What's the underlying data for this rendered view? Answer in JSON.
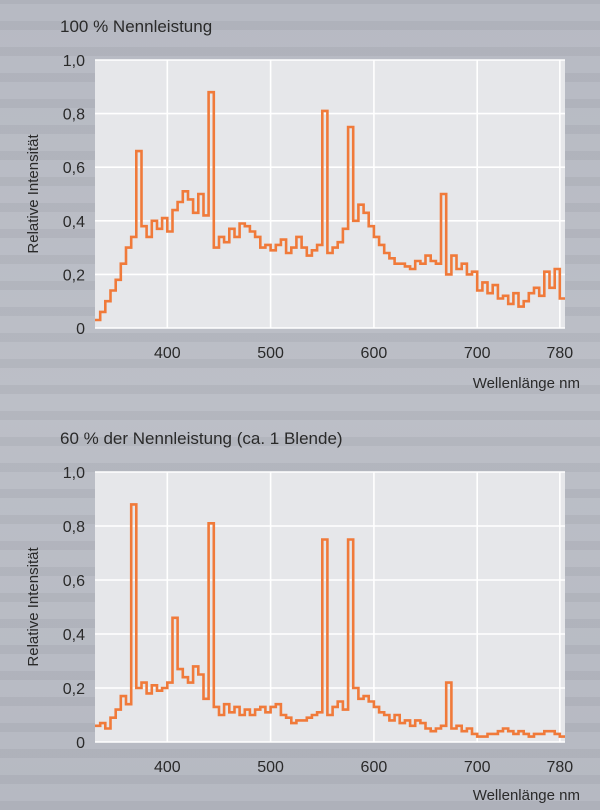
{
  "colors": {
    "line": "#f07a3a",
    "grid": "#ffffff",
    "plot_bg": "#e6e7ea",
    "text": "#2a2a2a"
  },
  "chart_data": [
    {
      "type": "line",
      "title": "100 % Nennleistung",
      "xlabel": "Wellenlänge nm",
      "ylabel": "Relative Intensität",
      "xlim": [
        330,
        785
      ],
      "ylim": [
        0,
        1.0
      ],
      "xticks": [
        400,
        500,
        600,
        700,
        780
      ],
      "yticks": [
        "0",
        "0,2",
        "0,4",
        "0,6",
        "0,8",
        "1,0"
      ],
      "grid": true,
      "series": [
        {
          "x": [
            330,
            335,
            340,
            345,
            350,
            355,
            360,
            365,
            370,
            375,
            380,
            385,
            390,
            395,
            400,
            405,
            410,
            415,
            420,
            425,
            430,
            435,
            440,
            445,
            450,
            455,
            460,
            465,
            470,
            475,
            480,
            485,
            490,
            495,
            500,
            505,
            510,
            515,
            520,
            525,
            530,
            535,
            540,
            545,
            550,
            555,
            560,
            565,
            570,
            575,
            580,
            585,
            590,
            595,
            600,
            605,
            610,
            615,
            620,
            625,
            630,
            635,
            640,
            645,
            650,
            655,
            660,
            665,
            670,
            675,
            680,
            685,
            690,
            695,
            700,
            705,
            710,
            715,
            720,
            725,
            730,
            735,
            740,
            745,
            750,
            755,
            760,
            765,
            770,
            775,
            780
          ],
          "values": [
            0.03,
            0.06,
            0.1,
            0.14,
            0.18,
            0.24,
            0.3,
            0.34,
            0.66,
            0.38,
            0.34,
            0.4,
            0.37,
            0.41,
            0.36,
            0.44,
            0.47,
            0.51,
            0.48,
            0.43,
            0.5,
            0.42,
            0.88,
            0.3,
            0.34,
            0.32,
            0.37,
            0.34,
            0.39,
            0.38,
            0.36,
            0.34,
            0.3,
            0.31,
            0.29,
            0.31,
            0.33,
            0.28,
            0.3,
            0.34,
            0.3,
            0.27,
            0.29,
            0.31,
            0.81,
            0.28,
            0.3,
            0.32,
            0.37,
            0.75,
            0.4,
            0.46,
            0.43,
            0.38,
            0.34,
            0.31,
            0.28,
            0.26,
            0.24,
            0.24,
            0.23,
            0.22,
            0.25,
            0.24,
            0.27,
            0.25,
            0.24,
            0.5,
            0.2,
            0.27,
            0.22,
            0.24,
            0.2,
            0.21,
            0.14,
            0.17,
            0.13,
            0.16,
            0.11,
            0.12,
            0.09,
            0.13,
            0.08,
            0.1,
            0.13,
            0.15,
            0.12,
            0.21,
            0.15,
            0.22,
            0.11
          ]
        }
      ]
    },
    {
      "type": "line",
      "title": "60 % der Nennleistung (ca. 1 Blende)",
      "xlabel": "Wellenlänge nm",
      "ylabel": "Relative Intensität",
      "xlim": [
        330,
        785
      ],
      "ylim": [
        0,
        1.0
      ],
      "xticks": [
        400,
        500,
        600,
        700,
        780
      ],
      "yticks": [
        "0",
        "0,2",
        "0,4",
        "0,6",
        "0,8",
        "1,0"
      ],
      "grid": true,
      "series": [
        {
          "x": [
            330,
            335,
            340,
            345,
            350,
            355,
            360,
            365,
            370,
            375,
            380,
            385,
            390,
            395,
            400,
            405,
            410,
            415,
            420,
            425,
            430,
            435,
            440,
            445,
            450,
            455,
            460,
            465,
            470,
            475,
            480,
            485,
            490,
            495,
            500,
            505,
            510,
            515,
            520,
            525,
            530,
            535,
            540,
            545,
            550,
            555,
            560,
            565,
            570,
            575,
            580,
            585,
            590,
            595,
            600,
            605,
            610,
            615,
            620,
            625,
            630,
            635,
            640,
            645,
            650,
            655,
            660,
            665,
            670,
            675,
            680,
            685,
            690,
            695,
            700,
            705,
            710,
            715,
            720,
            725,
            730,
            735,
            740,
            745,
            750,
            755,
            760,
            765,
            770,
            775,
            780
          ],
          "values": [
            0.06,
            0.07,
            0.05,
            0.09,
            0.12,
            0.17,
            0.14,
            0.88,
            0.2,
            0.22,
            0.18,
            0.21,
            0.19,
            0.2,
            0.22,
            0.46,
            0.27,
            0.24,
            0.22,
            0.28,
            0.25,
            0.16,
            0.81,
            0.13,
            0.1,
            0.14,
            0.11,
            0.13,
            0.1,
            0.12,
            0.1,
            0.12,
            0.13,
            0.11,
            0.13,
            0.14,
            0.1,
            0.09,
            0.07,
            0.08,
            0.08,
            0.09,
            0.1,
            0.11,
            0.75,
            0.1,
            0.13,
            0.15,
            0.12,
            0.75,
            0.2,
            0.16,
            0.17,
            0.15,
            0.13,
            0.11,
            0.1,
            0.08,
            0.1,
            0.07,
            0.08,
            0.06,
            0.08,
            0.07,
            0.05,
            0.04,
            0.05,
            0.06,
            0.22,
            0.05,
            0.06,
            0.04,
            0.05,
            0.03,
            0.02,
            0.02,
            0.03,
            0.03,
            0.04,
            0.05,
            0.04,
            0.03,
            0.04,
            0.03,
            0.02,
            0.03,
            0.03,
            0.04,
            0.04,
            0.03,
            0.02
          ]
        }
      ]
    }
  ]
}
